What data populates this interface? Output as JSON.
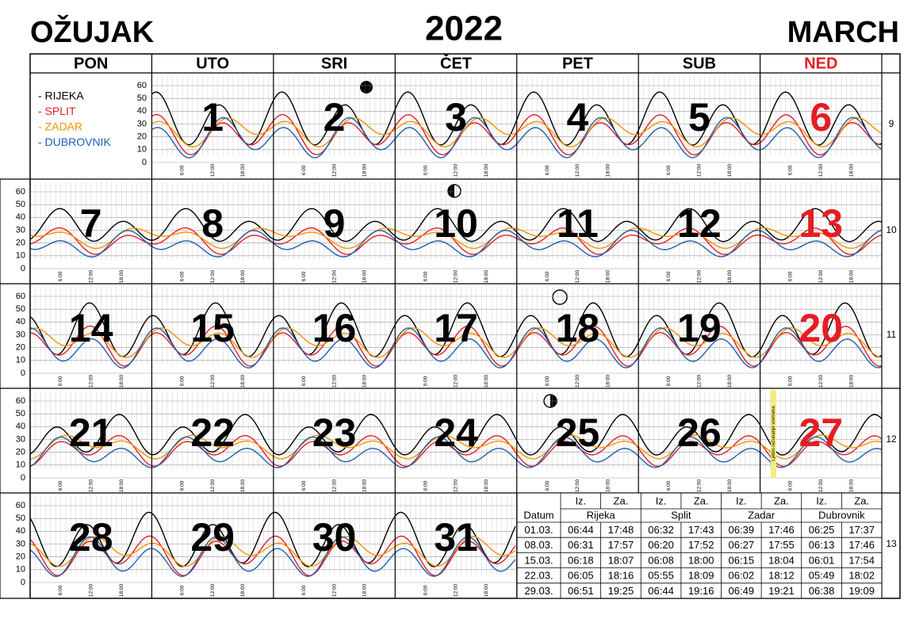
{
  "header": {
    "title_hr": "OŽUJAK",
    "year": "2022",
    "title_en": "MARCH"
  },
  "weekdays": [
    "PON",
    "UTO",
    "SRI",
    "ČET",
    "PET",
    "SUB",
    "NED"
  ],
  "legend": [
    "- RIJEKA",
    "- SPLIT",
    "- ZADAR",
    "- DUBROVNIK"
  ],
  "y_ticks": [
    "0",
    "10",
    "20",
    "30",
    "40",
    "50",
    "60"
  ],
  "time_labels": [
    "6:00",
    "12:00",
    "18:00"
  ],
  "weeks": [
    {
      "number": "9",
      "days": [
        null,
        "1",
        "2",
        "3",
        "4",
        "5",
        "6"
      ]
    },
    {
      "number": "10",
      "days": [
        "7",
        "8",
        "9",
        "10",
        "11",
        "12",
        "13"
      ]
    },
    {
      "number": "11",
      "days": [
        "14",
        "15",
        "16",
        "17",
        "18",
        "19",
        "20"
      ]
    },
    {
      "number": "12",
      "days": [
        "21",
        "22",
        "23",
        "24",
        "25",
        "26",
        "27"
      ]
    },
    {
      "number": "13",
      "days": [
        "28",
        "29",
        "30",
        "31"
      ]
    }
  ],
  "dst_note": "Ljetno računanje vremena",
  "sun_table": {
    "sub_headers": [
      "Iz.",
      "Za.",
      "Iz.",
      "Za.",
      "Iz.",
      "Za.",
      "Iz.",
      "Za."
    ],
    "datum": "Datum",
    "cities": [
      "Rijeka",
      "Split",
      "Zadar",
      "Dubrovnik"
    ],
    "rows": [
      [
        "01.03.",
        "06:44",
        "17:48",
        "06:32",
        "17:43",
        "06:39",
        "17:46",
        "06:25",
        "17:37"
      ],
      [
        "08.03.",
        "06:31",
        "17:57",
        "06:20",
        "17:52",
        "06:27",
        "17:55",
        "06:13",
        "17:46"
      ],
      [
        "15.03.",
        "06:18",
        "18:07",
        "06:08",
        "18:00",
        "06:15",
        "18:04",
        "06:01",
        "17:54"
      ],
      [
        "22.03.",
        "06:05",
        "18:16",
        "05:55",
        "18:09",
        "06:02",
        "18:12",
        "05:49",
        "18:02"
      ],
      [
        "29.03.",
        "06:51",
        "19:25",
        "06:44",
        "19:16",
        "06:49",
        "19:21",
        "06:38",
        "19:09"
      ]
    ]
  }
}
